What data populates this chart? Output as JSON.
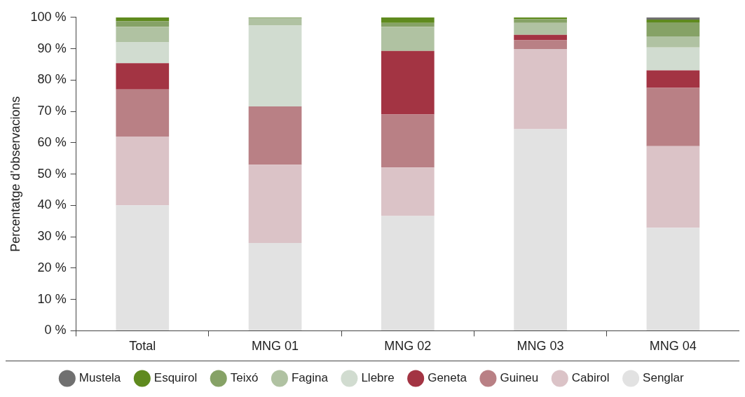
{
  "chart_data": {
    "type": "bar",
    "stacked": true,
    "ylabel": "Percentatge d’observacions",
    "categories": [
      "Total",
      "MNG 01",
      "MNG 02",
      "MNG 03",
      "MNG 04"
    ],
    "series": [
      {
        "name": "Senglar",
        "color": "#e2e2e2",
        "values": [
          40,
          28,
          36.6,
          64.3,
          32.9
        ]
      },
      {
        "name": "Cabirol",
        "color": "#dbc3c7",
        "values": [
          22,
          25,
          15.5,
          25.6,
          26
        ]
      },
      {
        "name": "Guineu",
        "color": "#b98085",
        "values": [
          15,
          18.6,
          16.9,
          2.8,
          18.6
        ]
      },
      {
        "name": "Geneta",
        "color": "#a33443",
        "values": [
          8.4,
          0,
          20.3,
          1.7,
          5.6
        ]
      },
      {
        "name": "Llebre",
        "color": "#d1dcd0",
        "values": [
          6.6,
          25.8,
          0,
          0,
          7.3
        ]
      },
      {
        "name": "Fagina",
        "color": "#b0c2a2",
        "values": [
          5,
          2.2,
          7.7,
          3.8,
          3.5
        ]
      },
      {
        "name": "Teixó",
        "color": "#86a266",
        "values": [
          1.8,
          0.4,
          1.2,
          1.2,
          4.5
        ]
      },
      {
        "name": "Esquirol",
        "color": "#5f8a1e",
        "values": [
          1.2,
          0,
          1.8,
          0.6,
          0.9
        ]
      },
      {
        "name": "Mustela",
        "color": "#707070",
        "values": [
          0,
          0,
          0,
          0,
          0.7
        ]
      }
    ],
    "ylim": [
      0,
      100
    ],
    "yticks": [
      {
        "value": 0,
        "label": "0 %"
      },
      {
        "value": 10,
        "label": "10 %"
      },
      {
        "value": 20,
        "label": "20 %"
      },
      {
        "value": 30,
        "label": "30 %"
      },
      {
        "value": 40,
        "label": "40 %"
      },
      {
        "value": 50,
        "label": "50 %"
      },
      {
        "value": 60,
        "label": "60 %"
      },
      {
        "value": 70,
        "label": "70 %"
      },
      {
        "value": 80,
        "label": "80 %"
      },
      {
        "value": 90,
        "label": "90 %"
      },
      {
        "value": 100,
        "label": "100 %"
      }
    ],
    "grid": false,
    "legend": "bottom",
    "marker": "circle"
  }
}
